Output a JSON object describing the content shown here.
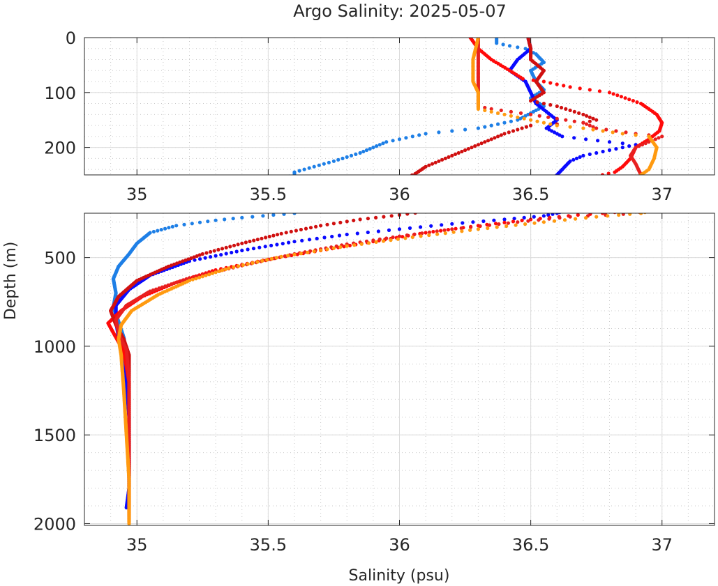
{
  "chart_data": {
    "type": "scatter",
    "title": "Argo Salinity: 2025-05-07",
    "xlabel": "Salinity (psu)",
    "ylabel": "Depth (m)",
    "grid": true,
    "legend": "none",
    "colors": {
      "axis": "#262626",
      "grid_major": "#dcdcdc",
      "grid_minor": "#c8c8c8"
    },
    "panels": [
      {
        "name": "upper",
        "xlim": [
          34.8,
          37.2
        ],
        "ylim": [
          0,
          250
        ],
        "y_reversed": true,
        "x_ticks": [
          {
            "value": 35,
            "label": "35"
          },
          {
            "value": 35.5,
            "label": "35.5"
          },
          {
            "value": 36,
            "label": "36"
          },
          {
            "value": 36.5,
            "label": "36.5"
          },
          {
            "value": 37,
            "label": "37"
          }
        ],
        "y_ticks": [
          {
            "value": 0,
            "label": "0"
          },
          {
            "value": 100,
            "label": "100"
          },
          {
            "value": 200,
            "label": "200"
          }
        ]
      },
      {
        "name": "lower",
        "xlim": [
          34.8,
          37.2
        ],
        "ylim": [
          250,
          2010
        ],
        "y_reversed": true,
        "x_ticks": [
          {
            "value": 35,
            "label": "35"
          },
          {
            "value": 35.5,
            "label": "35.5"
          },
          {
            "value": 36,
            "label": "36"
          },
          {
            "value": 36.5,
            "label": "36.5"
          },
          {
            "value": 37,
            "label": "37"
          }
        ],
        "y_ticks": [
          {
            "value": 500,
            "label": "500"
          },
          {
            "value": 1000,
            "label": "1000"
          },
          {
            "value": 1500,
            "label": "1500"
          },
          {
            "value": 2000,
            "label": "2000"
          }
        ]
      }
    ],
    "series": [
      {
        "color": "#1e7fe6",
        "points": [
          [
            36.37,
            0
          ],
          [
            36.37,
            10
          ],
          [
            36.42,
            15
          ],
          [
            36.48,
            20
          ],
          [
            36.52,
            30
          ],
          [
            36.55,
            45
          ],
          [
            36.5,
            60
          ],
          [
            36.52,
            80
          ],
          [
            36.55,
            95
          ],
          [
            36.5,
            110
          ],
          [
            36.55,
            125
          ],
          [
            36.45,
            150
          ],
          [
            36.3,
            165
          ],
          [
            36.1,
            175
          ],
          [
            35.95,
            190
          ],
          [
            35.85,
            210
          ],
          [
            35.75,
            225
          ],
          [
            35.6,
            245
          ],
          [
            35.6,
            250
          ],
          [
            35.52,
            260
          ],
          [
            35.4,
            275
          ],
          [
            35.3,
            290
          ],
          [
            35.15,
            320
          ],
          [
            35.05,
            360
          ],
          [
            35.0,
            420
          ],
          [
            34.97,
            480
          ],
          [
            34.93,
            550
          ],
          [
            34.91,
            620
          ],
          [
            34.92,
            700
          ],
          [
            34.91,
            780
          ],
          [
            34.93,
            860
          ],
          [
            34.95,
            950
          ],
          [
            34.96,
            1050
          ],
          [
            34.97,
            1200
          ],
          [
            34.97,
            1400
          ],
          [
            34.97,
            1600
          ],
          [
            34.97,
            1730
          ]
        ]
      },
      {
        "color": "#0a0aff",
        "points": [
          [
            36.49,
            0
          ],
          [
            36.5,
            20
          ],
          [
            36.45,
            40
          ],
          [
            36.42,
            60
          ],
          [
            36.48,
            80
          ],
          [
            36.5,
            100
          ],
          [
            36.52,
            120
          ],
          [
            36.56,
            135
          ],
          [
            36.6,
            150
          ],
          [
            36.56,
            165
          ],
          [
            36.62,
            180
          ],
          [
            36.8,
            190
          ],
          [
            36.9,
            195
          ],
          [
            36.8,
            205
          ],
          [
            36.7,
            215
          ],
          [
            36.65,
            225
          ],
          [
            36.62,
            240
          ],
          [
            36.6,
            250
          ],
          [
            36.55,
            265
          ],
          [
            36.4,
            285
          ],
          [
            36.2,
            310
          ],
          [
            36.0,
            340
          ],
          [
            35.8,
            370
          ],
          [
            35.6,
            410
          ],
          [
            35.4,
            460
          ],
          [
            35.2,
            520
          ],
          [
            35.05,
            600
          ],
          [
            34.97,
            680
          ],
          [
            34.92,
            770
          ],
          [
            34.92,
            860
          ],
          [
            34.93,
            950
          ],
          [
            34.95,
            1050
          ],
          [
            34.96,
            1200
          ],
          [
            34.97,
            1400
          ],
          [
            34.97,
            1600
          ],
          [
            34.97,
            1800
          ],
          [
            34.96,
            1910
          ]
        ]
      },
      {
        "color": "#ff0a0a",
        "points": [
          [
            36.27,
            0
          ],
          [
            36.3,
            20
          ],
          [
            36.35,
            40
          ],
          [
            36.42,
            60
          ],
          [
            36.47,
            75
          ],
          [
            36.55,
            80
          ],
          [
            36.65,
            90
          ],
          [
            36.8,
            100
          ],
          [
            36.92,
            120
          ],
          [
            36.98,
            140
          ],
          [
            37.0,
            155
          ],
          [
            36.99,
            170
          ],
          [
            36.95,
            185
          ],
          [
            36.9,
            200
          ],
          [
            36.88,
            220
          ],
          [
            36.85,
            235
          ],
          [
            36.82,
            245
          ],
          [
            36.68,
            260
          ],
          [
            36.5,
            285
          ],
          [
            36.3,
            320
          ],
          [
            36.1,
            360
          ],
          [
            35.9,
            410
          ],
          [
            35.7,
            460
          ],
          [
            35.5,
            510
          ],
          [
            35.3,
            570
          ],
          [
            35.15,
            640
          ],
          [
            35.02,
            720
          ],
          [
            34.94,
            800
          ],
          [
            34.89,
            870
          ],
          [
            34.92,
            950
          ],
          [
            34.95,
            1030
          ],
          [
            34.97,
            1200
          ],
          [
            34.97,
            1400
          ],
          [
            34.97,
            1600
          ],
          [
            34.97,
            1800
          ],
          [
            34.97,
            1990
          ]
        ]
      },
      {
        "color": "#d01010",
        "points": [
          [
            36.49,
            0
          ],
          [
            36.5,
            20
          ],
          [
            36.5,
            40
          ],
          [
            36.55,
            60
          ],
          [
            36.52,
            80
          ],
          [
            36.55,
            100
          ],
          [
            36.5,
            115
          ],
          [
            36.6,
            125
          ],
          [
            36.7,
            140
          ],
          [
            36.75,
            150
          ],
          [
            36.7,
            155
          ],
          [
            36.5,
            160
          ],
          [
            36.4,
            175
          ],
          [
            36.3,
            195
          ],
          [
            36.2,
            215
          ],
          [
            36.1,
            235
          ],
          [
            36.06,
            248
          ],
          [
            36.0,
            260
          ],
          [
            35.85,
            285
          ],
          [
            35.7,
            320
          ],
          [
            35.55,
            365
          ],
          [
            35.4,
            420
          ],
          [
            35.25,
            480
          ],
          [
            35.12,
            550
          ],
          [
            35.0,
            630
          ],
          [
            34.93,
            720
          ],
          [
            34.9,
            800
          ],
          [
            34.92,
            880
          ],
          [
            34.95,
            960
          ],
          [
            34.97,
            1050
          ],
          [
            34.97,
            1250
          ],
          [
            34.97,
            1500
          ],
          [
            34.97,
            1750
          ],
          [
            34.97,
            1980
          ]
        ]
      },
      {
        "color": "#e82020",
        "points": [
          [
            36.3,
            0
          ],
          [
            36.3,
            50
          ],
          [
            36.3,
            100
          ],
          [
            36.3,
            125
          ],
          [
            36.35,
            130
          ],
          [
            36.5,
            140
          ],
          [
            36.7,
            155
          ],
          [
            36.75,
            165
          ],
          [
            36.9,
            175
          ],
          [
            37.0,
            180
          ],
          [
            36.95,
            190
          ],
          [
            36.9,
            200
          ],
          [
            36.88,
            215
          ],
          [
            36.9,
            230
          ],
          [
            36.92,
            250
          ],
          [
            36.65,
            270
          ],
          [
            36.45,
            300
          ],
          [
            36.2,
            340
          ],
          [
            36.0,
            380
          ],
          [
            35.8,
            425
          ],
          [
            35.6,
            480
          ],
          [
            35.4,
            545
          ],
          [
            35.2,
            615
          ],
          [
            35.05,
            690
          ],
          [
            34.96,
            770
          ],
          [
            34.92,
            850
          ],
          [
            34.93,
            930
          ],
          [
            34.96,
            1020
          ],
          [
            34.97,
            1200
          ],
          [
            34.97,
            1400
          ],
          [
            34.97,
            1650
          ],
          [
            34.97,
            1900
          ]
        ]
      },
      {
        "color": "#ff9a10",
        "points": [
          [
            36.3,
            0
          ],
          [
            36.28,
            40
          ],
          [
            36.28,
            80
          ],
          [
            36.3,
            100
          ],
          [
            36.3,
            130
          ],
          [
            36.35,
            135
          ],
          [
            36.5,
            150
          ],
          [
            36.6,
            160
          ],
          [
            36.7,
            165
          ],
          [
            36.85,
            175
          ],
          [
            36.95,
            180
          ],
          [
            36.98,
            200
          ],
          [
            36.97,
            220
          ],
          [
            36.95,
            240
          ],
          [
            36.92,
            250
          ],
          [
            36.75,
            270
          ],
          [
            36.55,
            300
          ],
          [
            36.3,
            340
          ],
          [
            36.05,
            385
          ],
          [
            35.8,
            435
          ],
          [
            35.55,
            495
          ],
          [
            35.35,
            560
          ],
          [
            35.2,
            630
          ],
          [
            35.08,
            710
          ],
          [
            34.98,
            800
          ],
          [
            34.94,
            880
          ],
          [
            34.93,
            960
          ],
          [
            34.94,
            1050
          ],
          [
            34.95,
            1250
          ],
          [
            34.96,
            1500
          ],
          [
            34.97,
            1750
          ],
          [
            34.97,
            2000
          ]
        ]
      }
    ]
  }
}
